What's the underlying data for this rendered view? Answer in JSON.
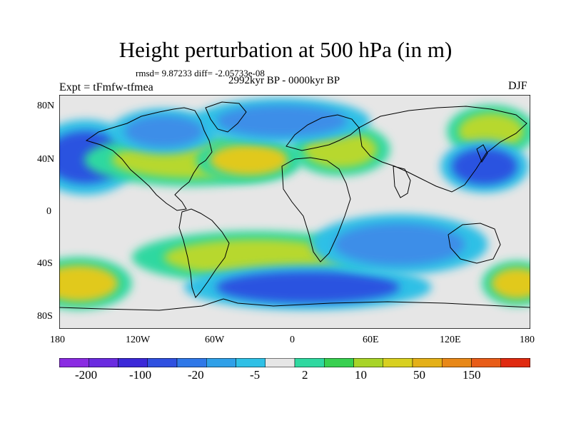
{
  "figure": {
    "title": "Height perturbation at 500 hPa (in m)",
    "rmsd_text": "rmsd= 9.87233 diff= -2.05733e-08",
    "subtitle": "2992kyr BP - 0000kyr BP",
    "experiment": "Expt = tFmfw-tfmea",
    "season": "DJF"
  },
  "map": {
    "lat_labels": [
      "80N",
      "40N",
      "0",
      "40S",
      "80S"
    ],
    "lon_labels": [
      "180",
      "120W",
      "60W",
      "0",
      "60E",
      "120E",
      "180"
    ],
    "projection": "cylindrical equidistant",
    "lon_range": [
      -180,
      180
    ],
    "lat_range": [
      -90,
      90
    ],
    "fill_regions": [
      {
        "name": "north-pacific-high-anomaly",
        "lon": -160,
        "lat": 42,
        "rlon": 30,
        "rlat": 20,
        "level": "negative",
        "color": "#2a52e0"
      },
      {
        "name": "north-america-positive-band",
        "lon": -80,
        "lat": 40,
        "rlon": 60,
        "rlat": 14,
        "level": "positive",
        "color": "#b7d82e"
      },
      {
        "name": "atlantic-ridge",
        "lon": -35,
        "lat": 40,
        "rlon": 30,
        "rlat": 12,
        "level": "positive",
        "color": "#e1c91f"
      },
      {
        "name": "europe-positive",
        "lon": 35,
        "lat": 48,
        "rlon": 28,
        "rlat": 14,
        "level": "positive",
        "color": "#b7d82e"
      },
      {
        "name": "north-atlantic-trough",
        "lon": -10,
        "lat": 70,
        "rlon": 50,
        "rlat": 12,
        "level": "negative",
        "color": "#3c8ee8"
      },
      {
        "name": "siberia-positive",
        "lon": 150,
        "lat": 62,
        "rlon": 25,
        "rlat": 14,
        "level": "positive",
        "color": "#b7d82e"
      },
      {
        "name": "east-asia-trough",
        "lon": 145,
        "lat": 35,
        "rlon": 25,
        "rlat": 14,
        "level": "negative",
        "color": "#2a52e0"
      },
      {
        "name": "south-atlantic-positive",
        "lon": -30,
        "lat": -35,
        "rlon": 70,
        "rlat": 14,
        "level": "positive",
        "color": "#b7d82e"
      },
      {
        "name": "south-pacific-positive",
        "lon": -165,
        "lat": -55,
        "rlon": 30,
        "rlat": 14,
        "level": "positive",
        "color": "#e1c91f"
      },
      {
        "name": "southern-ocean-trough",
        "lon": 10,
        "lat": -58,
        "rlon": 70,
        "rlat": 12,
        "level": "negative",
        "color": "#2a52e0"
      },
      {
        "name": "south-pacific-positive-east",
        "lon": 170,
        "lat": -55,
        "rlon": 20,
        "rlat": 12,
        "level": "positive",
        "color": "#e1c91f"
      },
      {
        "name": "tropical-indian-negative",
        "lon": 80,
        "lat": -25,
        "rlon": 50,
        "rlat": 16,
        "level": "negative",
        "color": "#3c8ee8"
      },
      {
        "name": "north-america-negative",
        "lon": -100,
        "lat": 62,
        "rlon": 30,
        "rlat": 12,
        "level": "negative",
        "color": "#3c8ee8"
      }
    ]
  },
  "colorbar": {
    "labels": [
      "-200",
      "-100",
      "-20",
      "-5",
      "2",
      "10",
      "50",
      "150"
    ],
    "colors": [
      "#8a2be2",
      "#6a2be0",
      "#3b28d8",
      "#2f50e0",
      "#2f78e8",
      "#2fa0e8",
      "#2fc0e6",
      "#e6e6e6",
      "#2fd8a0",
      "#38d050",
      "#a8d428",
      "#d8d020",
      "#e4b018",
      "#e88818",
      "#e85c18",
      "#e02a10"
    ]
  },
  "colors": {
    "background": "#e6e6e6",
    "coastline": "#000000"
  }
}
